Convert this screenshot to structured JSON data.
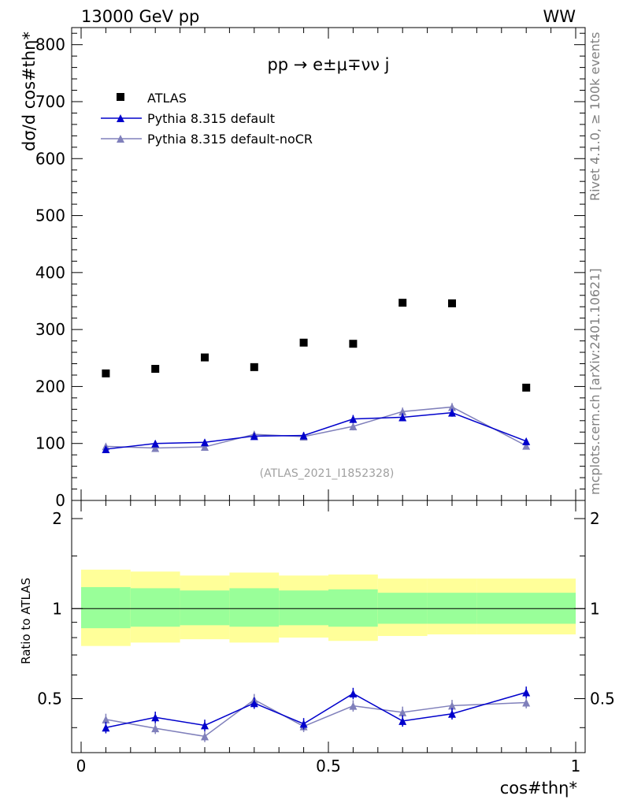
{
  "header": {
    "left": "13000 GeV pp",
    "right": "WW"
  },
  "side_labels": {
    "rivet": "Rivet 4.1.0, ≥ 100k events",
    "mcplots": "mcplots.cern.ch [arXiv:2401.10621]"
  },
  "chart_data": {
    "type": "scatter",
    "process_label": "pp → e±μ∓νν j",
    "analysis_label": "(ATLAS_2021_I1852328)",
    "xlabel": "cos#thη*",
    "ylabel_main": "dσ/d cos#thη*",
    "ylabel_ratio": "Ratio to ATLAS",
    "xlim": [
      0,
      1
    ],
    "ylim_main": [
      0,
      830
    ],
    "ylim_ratio": [
      0.33,
      2.3
    ],
    "x_ticks": [
      "0",
      "0.5",
      "1"
    ],
    "y_ticks_main": [
      "0",
      "100",
      "200",
      "300",
      "400",
      "500",
      "600",
      "700",
      "800"
    ],
    "y_ticks_ratio": [
      "0.5",
      "1",
      "2"
    ],
    "bins": [
      [
        0.0,
        0.1
      ],
      [
        0.1,
        0.2
      ],
      [
        0.2,
        0.3
      ],
      [
        0.3,
        0.4
      ],
      [
        0.4,
        0.5
      ],
      [
        0.5,
        0.6
      ],
      [
        0.6,
        0.7
      ],
      [
        0.7,
        0.8
      ],
      [
        0.8,
        1.0
      ]
    ],
    "x": [
      0.05,
      0.15,
      0.25,
      0.35,
      0.45,
      0.55,
      0.65,
      0.75,
      0.9
    ],
    "legend": [
      "ATLAS",
      "Pythia 8.315 default",
      "Pythia 8.315 default-noCR"
    ],
    "series": [
      {
        "name": "ATLAS",
        "color": "#000000",
        "values": [
          223,
          231,
          251,
          234,
          277,
          275,
          347,
          346,
          198
        ]
      },
      {
        "name": "Pythia 8.315 default",
        "color": "#0000cc",
        "values": [
          90,
          100,
          102,
          113,
          114,
          143,
          146,
          154,
          104
        ],
        "errors": [
          4,
          5,
          5,
          6,
          6,
          7,
          7,
          7,
          5
        ]
      },
      {
        "name": "Pythia 8.315 default-noCR",
        "color": "#8080bb",
        "values": [
          95,
          92,
          94,
          116,
          112,
          130,
          156,
          164,
          96
        ],
        "errors": [
          4,
          4,
          5,
          6,
          6,
          7,
          7,
          7,
          5
        ]
      }
    ],
    "ratio": {
      "default": [
        0.4,
        0.433,
        0.407,
        0.483,
        0.412,
        0.52,
        0.421,
        0.445,
        0.525
      ],
      "default_noCR": [
        0.426,
        0.398,
        0.374,
        0.496,
        0.404,
        0.473,
        0.45,
        0.474,
        0.485
      ],
      "band_inner": [
        [
          0.86,
          1.18
        ],
        [
          0.87,
          1.17
        ],
        [
          0.88,
          1.15
        ],
        [
          0.87,
          1.17
        ],
        [
          0.88,
          1.15
        ],
        [
          0.87,
          1.16
        ],
        [
          0.89,
          1.13
        ],
        [
          0.89,
          1.13
        ],
        [
          0.89,
          1.13
        ]
      ],
      "band_outer": [
        [
          0.75,
          1.35
        ],
        [
          0.77,
          1.33
        ],
        [
          0.79,
          1.29
        ],
        [
          0.77,
          1.32
        ],
        [
          0.8,
          1.29
        ],
        [
          0.78,
          1.3
        ],
        [
          0.81,
          1.26
        ],
        [
          0.82,
          1.26
        ],
        [
          0.82,
          1.26
        ]
      ]
    }
  }
}
